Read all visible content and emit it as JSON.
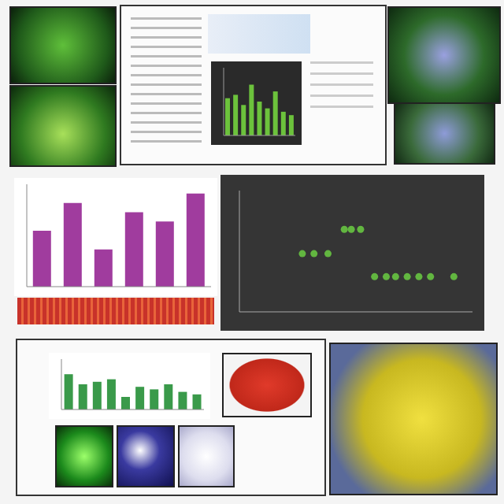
{
  "chart_data": [
    {
      "type": "bar",
      "categories": [
        null,
        null,
        null,
        null,
        null,
        null
      ],
      "values": [
        60,
        90,
        40,
        80,
        70,
        100
      ],
      "color": "#a03c9e",
      "ylim": [
        0,
        110
      ],
      "tick_labels": false
    },
    {
      "type": "scatter",
      "x": [
        27,
        32,
        38,
        45,
        48,
        52,
        58,
        63,
        67,
        72,
        77,
        82,
        92
      ],
      "values": [
        48,
        48,
        48,
        68,
        68,
        68,
        29,
        29,
        29,
        29,
        29,
        29,
        29
      ],
      "color": "#62b640",
      "xlim": [
        0,
        100
      ],
      "ylim": [
        0,
        100
      ],
      "tick_labels": false
    },
    {
      "type": "bar",
      "categories": [
        null,
        null,
        null,
        null,
        null,
        null,
        null,
        null,
        null
      ],
      "values": [
        55,
        60,
        45,
        75,
        50,
        40,
        65,
        35,
        30
      ],
      "color": "#6cc23c",
      "ylim": [
        0,
        100
      ],
      "tick_labels": false
    },
    {
      "type": "bar",
      "categories": [
        null,
        null,
        null,
        null,
        null,
        null,
        null,
        null,
        null,
        null
      ],
      "values": [
        70,
        50,
        55,
        60,
        25,
        45,
        40,
        50,
        35,
        30
      ],
      "color": "#3a9a4a",
      "ylim": [
        0,
        100
      ],
      "tick_labels": false
    }
  ]
}
